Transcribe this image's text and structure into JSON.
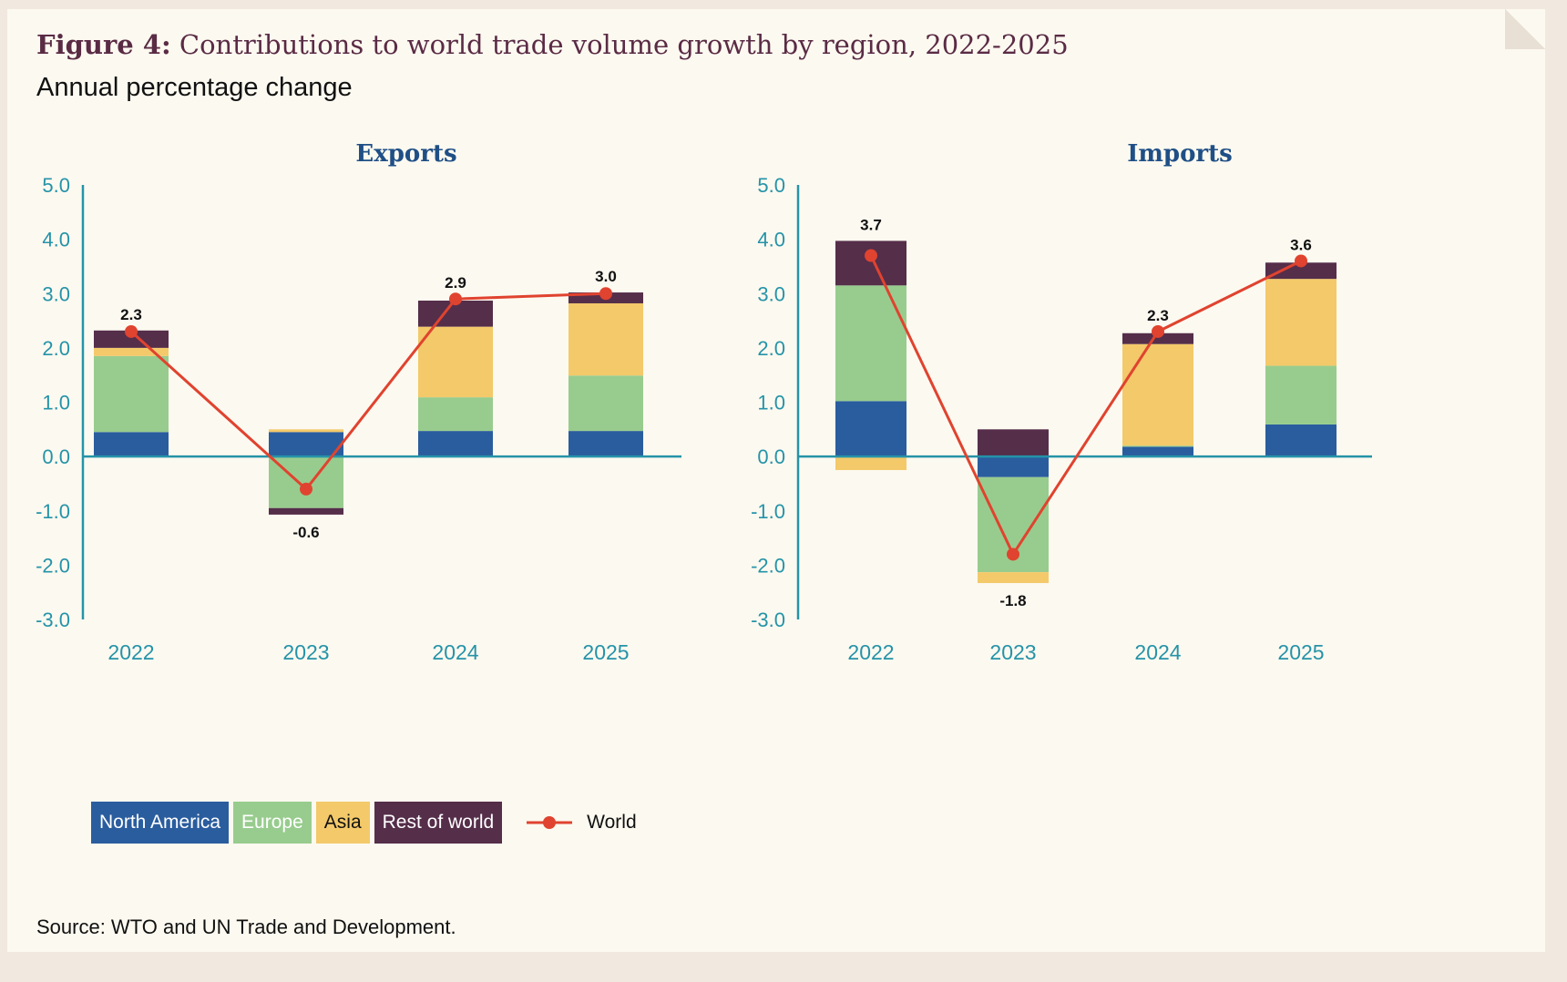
{
  "figure": {
    "label": "Figure 4:",
    "title": "Contributions to world trade volume growth by region, 2022-2025",
    "subtitle": "Annual percentage change",
    "source": "Source: WTO and UN Trade and Development."
  },
  "legend": {
    "items": [
      {
        "label": "North America",
        "color": "#2a5d9e",
        "text_color": "#ffffff"
      },
      {
        "label": "Europe",
        "color": "#98cc8e",
        "text_color": "#ffffff"
      },
      {
        "label": "Asia",
        "color": "#f3c96a",
        "text_color": "#111111"
      },
      {
        "label": "Rest of world",
        "color": "#552e4a",
        "text_color": "#ffffff"
      }
    ],
    "world": {
      "label": "World",
      "color": "#e0432f"
    }
  },
  "chart_data": [
    {
      "type": "bar",
      "stacked": true,
      "title": "Exports",
      "categories": [
        "2022",
        "2023",
        "2024",
        "2025"
      ],
      "ylim": [
        -3.0,
        5.0
      ],
      "yticks": [
        5.0,
        4.0,
        3.0,
        2.0,
        1.0,
        0.0,
        -1.0,
        -2.0,
        -3.0
      ],
      "ytick_labels": [
        "5.0",
        "4.0",
        "3.0",
        "2.0",
        "1.0",
        "0.0",
        "-1.0",
        "-2.0",
        "-3.0"
      ],
      "series": [
        {
          "name": "North America",
          "values": [
            0.45,
            0.45,
            0.47,
            0.47
          ]
        },
        {
          "name": "Europe",
          "values": [
            1.4,
            -0.95,
            0.62,
            1.02
          ]
        },
        {
          "name": "Asia",
          "values": [
            0.15,
            0.05,
            1.3,
            1.33
          ]
        },
        {
          "name": "Rest of world",
          "values": [
            0.32,
            -0.12,
            0.48,
            0.2
          ]
        }
      ],
      "line": {
        "name": "World",
        "values": [
          2.3,
          -0.6,
          2.9,
          3.0
        ],
        "labels": [
          "2.3",
          "-0.6",
          "2.9",
          "3.0"
        ]
      },
      "grid": false
    },
    {
      "type": "bar",
      "stacked": true,
      "title": "Imports",
      "categories": [
        "2022",
        "2023",
        "2024",
        "2025"
      ],
      "ylim": [
        -3.0,
        5.0
      ],
      "yticks": [
        5.0,
        4.0,
        3.0,
        2.0,
        1.0,
        0.0,
        -1.0,
        -2.0,
        -3.0
      ],
      "ytick_labels": [
        "5.0",
        "4.0",
        "3.0",
        "2.0",
        "1.0",
        "0.0",
        "-1.0",
        "-2.0",
        "-3.0"
      ],
      "series": [
        {
          "name": "North America",
          "values": [
            1.02,
            -0.38,
            0.18,
            0.59
          ]
        },
        {
          "name": "Europe",
          "values": [
            2.13,
            -1.75,
            0.02,
            1.08
          ]
        },
        {
          "name": "Asia",
          "values": [
            -0.25,
            -0.2,
            1.87,
            1.6
          ]
        },
        {
          "name": "Rest of world",
          "values": [
            0.82,
            0.5,
            0.2,
            0.3
          ]
        }
      ],
      "line": {
        "name": "World",
        "values": [
          3.7,
          -1.8,
          2.3,
          3.6
        ],
        "labels": [
          "3.7",
          "-1.8",
          "2.3",
          "3.6"
        ]
      },
      "grid": false
    }
  ]
}
